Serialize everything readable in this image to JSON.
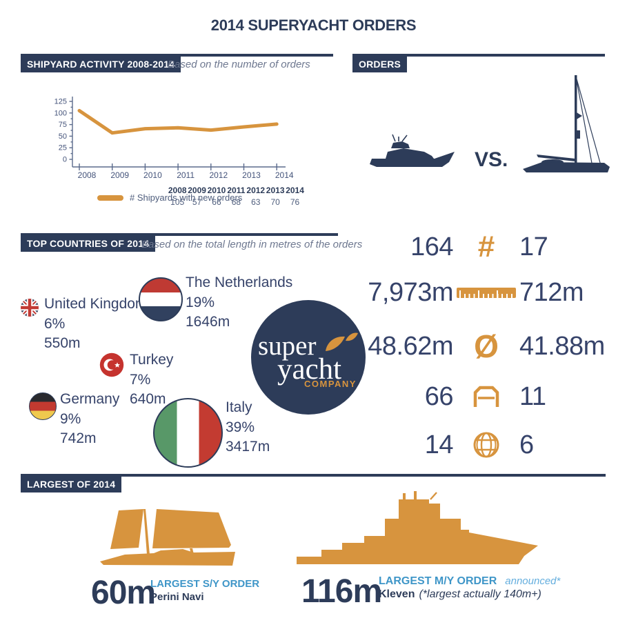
{
  "title": "2014 SUPERYACHT ORDERS",
  "colors": {
    "navy": "#2d3c59",
    "orange": "#d7943e",
    "light_blue": "#3f96c8",
    "background": "#ffffff"
  },
  "sections": {
    "shipyard": {
      "header": "SHIPYARD ACTIVITY 2008-2014",
      "subtitle": "Based on the number of orders",
      "legend_label": "# Shipyards with new orders"
    },
    "orders": {
      "header": "ORDERS",
      "vs": "VS.",
      "stats": [
        {
          "metric": "number-of-orders",
          "icon": "hash-icon",
          "motor": "164",
          "sail": "17"
        },
        {
          "metric": "total-length",
          "icon": "ruler-icon",
          "motor": "7,973m",
          "sail": "712m"
        },
        {
          "metric": "average-length",
          "icon": "diameter-icon",
          "motor": "48.62m",
          "sail": "41.88m"
        },
        {
          "metric": "shipyards",
          "icon": "shipyard-shed-icon",
          "motor": "66",
          "sail": "11"
        },
        {
          "metric": "countries",
          "icon": "globe-icon",
          "motor": "14",
          "sail": "6"
        }
      ]
    },
    "top_countries": {
      "header": "TOP COUNTRIES OF 2014",
      "subtitle": "Based on the total length in metres of the orders",
      "countries": [
        {
          "name": "United Kingdom",
          "percent": "6%",
          "length": "550m"
        },
        {
          "name": "The Netherlands",
          "percent": "19%",
          "length": "1646m"
        },
        {
          "name": "Turkey",
          "percent": "7%",
          "length": "640m"
        },
        {
          "name": "Germany",
          "percent": "9%",
          "length": "742m"
        },
        {
          "name": "Italy",
          "percent": "39%",
          "length": "3417m"
        }
      ]
    },
    "largest": {
      "header": "LARGEST OF 2014",
      "sail": {
        "size": "60m",
        "label": "LARGEST S/Y ORDER",
        "builder": "Perini Navi"
      },
      "motor": {
        "size": "116m",
        "label": "LARGEST M/Y ORDER",
        "announced": "announced*",
        "builder": "Kleven",
        "note": "(*largest actually 140m+)"
      }
    }
  },
  "logo": {
    "word1": "super",
    "word2": "yacht",
    "word3": "COMPANY"
  },
  "chart_data": [
    {
      "type": "line",
      "title": "SHIPYARD ACTIVITY 2008-2014",
      "categories": [
        "2008",
        "2009",
        "2010",
        "2011",
        "2012",
        "2013",
        "2014"
      ],
      "series": [
        {
          "name": "# Shipyards with new orders",
          "values": [
            105,
            57,
            66,
            68,
            63,
            70,
            76
          ]
        }
      ],
      "xlabel": "",
      "ylabel": "",
      "ylim": [
        0,
        125
      ],
      "yticks": [
        0,
        25,
        50,
        75,
        100,
        125
      ],
      "grid": false,
      "legend_position": "bottom-left",
      "line_color": "#d7943e"
    },
    {
      "type": "pie",
      "title": "TOP COUNTRIES OF 2014 (share of total length in metres)",
      "categories": [
        "Italy",
        "The Netherlands",
        "Germany",
        "Turkey",
        "United Kingdom"
      ],
      "values": [
        39,
        19,
        9,
        7,
        6
      ],
      "unit": "%",
      "lengths_m": [
        3417,
        1646,
        742,
        640,
        550
      ]
    },
    {
      "type": "table",
      "title": "Motor yacht vs sailing yacht orders",
      "columns": [
        "metric",
        "motor",
        "sail"
      ],
      "rows": [
        [
          "number of orders",
          164,
          17
        ],
        [
          "total length",
          "7,973m",
          "712m"
        ],
        [
          "average length",
          "48.62m",
          "41.88m"
        ],
        [
          "shipyards",
          66,
          11
        ],
        [
          "countries",
          14,
          6
        ]
      ]
    }
  ]
}
